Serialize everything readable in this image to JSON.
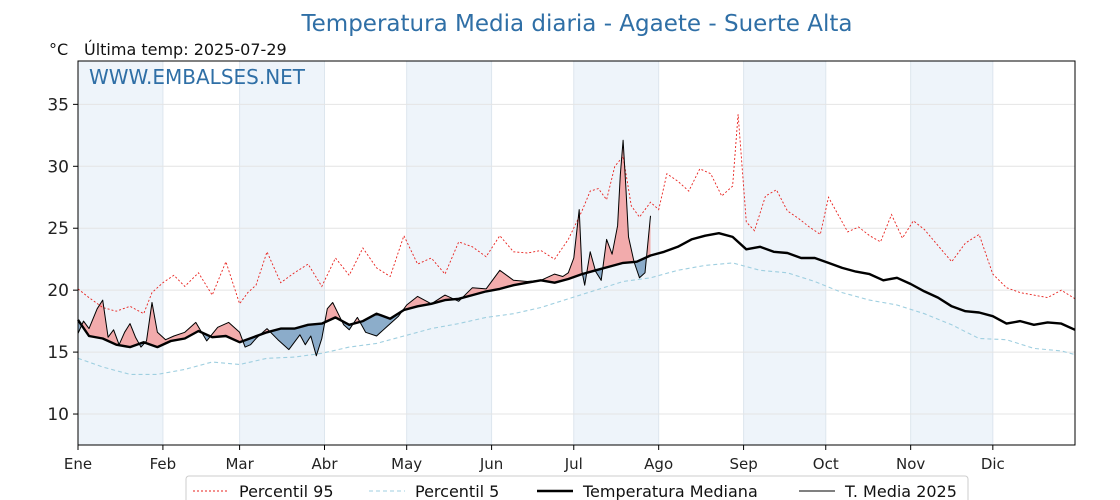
{
  "header": {
    "title": "Temperatura Media diaria - Agaete - Suerte Alta",
    "unit_label": "°C",
    "last_temp_label": "Última temp: 2025-07-29",
    "watermark": "WWW.EMBALSES.NET"
  },
  "colors": {
    "title": "#2f6fa6",
    "p95": "#e8211d",
    "p5": "#9fcfe0",
    "median": "#000000",
    "t2025": "#000000",
    "above_fill": "#f2a3a3",
    "below_fill": "#7fa4c4",
    "month_band": "#eef4fa"
  },
  "chart_data": {
    "type": "line",
    "title": "Temperatura Media diaria - Agaete - Suerte Alta",
    "ylabel": "°C",
    "xlabel": "",
    "x_unit": "day of year",
    "xlim": [
      1,
      365
    ],
    "ylim": [
      7.5,
      38.5
    ],
    "yticks": [
      10,
      15,
      20,
      25,
      30,
      35
    ],
    "grid": true,
    "legend_position": "bottom-center",
    "months": [
      {
        "label": "Ene",
        "day": 1
      },
      {
        "label": "Feb",
        "day": 32
      },
      {
        "label": "Mar",
        "day": 60
      },
      {
        "label": "Abr",
        "day": 91
      },
      {
        "label": "May",
        "day": 121
      },
      {
        "label": "Jun",
        "day": 152
      },
      {
        "label": "Jul",
        "day": 182
      },
      {
        "label": "Ago",
        "day": 213
      },
      {
        "label": "Sep",
        "day": 244
      },
      {
        "label": "Oct",
        "day": 274
      },
      {
        "label": "Nov",
        "day": 305
      },
      {
        "label": "Dic",
        "day": 335
      }
    ],
    "series": [
      {
        "name": "Percentil 95",
        "style": "dotted",
        "x": [
          1,
          5,
          10,
          15,
          20,
          25,
          28,
          32,
          36,
          40,
          45,
          50,
          55,
          60,
          63,
          66,
          70,
          75,
          80,
          85,
          90,
          95,
          100,
          105,
          110,
          115,
          120,
          125,
          130,
          135,
          140,
          145,
          150,
          155,
          160,
          165,
          170,
          175,
          180,
          185,
          188,
          191,
          194,
          197,
          200,
          203,
          206,
          210,
          213,
          216,
          220,
          224,
          228,
          232,
          236,
          240,
          242,
          245,
          248,
          252,
          256,
          260,
          264,
          268,
          272,
          275,
          278,
          282,
          286,
          290,
          294,
          298,
          302,
          306,
          310,
          315,
          320,
          325,
          330,
          335,
          340,
          345,
          350,
          355,
          360,
          365
        ],
        "values": [
          20.1,
          19.4,
          18.6,
          18.3,
          18.7,
          18.1,
          19.8,
          20.6,
          21.2,
          20.3,
          21.4,
          19.6,
          22.3,
          18.9,
          19.8,
          20.4,
          23.1,
          20.6,
          21.4,
          22.1,
          20.3,
          22.6,
          21.2,
          23.4,
          21.8,
          21.1,
          24.4,
          22.1,
          22.6,
          21.3,
          23.9,
          23.5,
          22.7,
          24.4,
          23.1,
          23.0,
          23.2,
          22.5,
          24.1,
          26.4,
          28.0,
          28.2,
          27.3,
          30.0,
          30.8,
          26.8,
          25.9,
          27.1,
          26.5,
          29.4,
          28.8,
          28.0,
          29.8,
          29.4,
          27.6,
          28.4,
          34.2,
          25.5,
          24.8,
          27.6,
          28.1,
          26.4,
          25.8,
          25.1,
          24.5,
          27.5,
          26.3,
          24.7,
          25.1,
          24.4,
          23.9,
          26.1,
          24.2,
          25.6,
          24.9,
          23.6,
          22.3,
          23.8,
          24.5,
          21.3,
          20.2,
          19.8,
          19.6,
          19.4,
          20.0,
          19.3
        ]
      },
      {
        "name": "Percentil 5",
        "style": "dashed",
        "x": [
          1,
          10,
          20,
          30,
          40,
          50,
          60,
          70,
          80,
          90,
          100,
          110,
          120,
          130,
          140,
          150,
          160,
          170,
          180,
          190,
          200,
          210,
          220,
          230,
          240,
          250,
          260,
          270,
          280,
          290,
          300,
          310,
          320,
          330,
          340,
          350,
          360,
          365
        ],
        "values": [
          14.5,
          13.8,
          13.2,
          13.2,
          13.6,
          14.2,
          14.0,
          14.5,
          14.6,
          14.9,
          15.4,
          15.7,
          16.3,
          16.9,
          17.3,
          17.8,
          18.1,
          18.6,
          19.3,
          20.0,
          20.7,
          21.0,
          21.6,
          22.0,
          22.2,
          21.6,
          21.4,
          20.7,
          19.8,
          19.2,
          18.8,
          18.1,
          17.2,
          16.1,
          16.0,
          15.3,
          15.1,
          14.8
        ]
      },
      {
        "name": "Temperatura Mediana",
        "style": "solid-thick",
        "x": [
          1,
          5,
          10,
          15,
          20,
          25,
          30,
          35,
          40,
          45,
          50,
          55,
          60,
          65,
          70,
          75,
          80,
          85,
          90,
          95,
          100,
          105,
          110,
          115,
          120,
          125,
          130,
          135,
          140,
          145,
          150,
          155,
          160,
          165,
          170,
          175,
          180,
          185,
          190,
          195,
          200,
          205,
          210,
          215,
          220,
          225,
          230,
          235,
          240,
          245,
          250,
          255,
          260,
          265,
          270,
          275,
          280,
          285,
          290,
          295,
          300,
          305,
          310,
          315,
          320,
          325,
          330,
          335,
          340,
          345,
          350,
          355,
          360,
          365
        ],
        "values": [
          17.6,
          16.3,
          16.1,
          15.6,
          15.4,
          15.8,
          15.4,
          15.9,
          16.1,
          16.7,
          16.2,
          16.3,
          15.8,
          16.2,
          16.6,
          16.9,
          16.9,
          17.2,
          17.3,
          17.8,
          17.2,
          17.5,
          18.1,
          17.7,
          18.4,
          18.7,
          18.9,
          19.2,
          19.3,
          19.6,
          19.9,
          20.1,
          20.4,
          20.6,
          20.8,
          20.6,
          20.9,
          21.3,
          21.6,
          21.9,
          22.2,
          22.3,
          22.8,
          23.1,
          23.5,
          24.1,
          24.4,
          24.6,
          24.3,
          23.3,
          23.5,
          23.1,
          23.0,
          22.6,
          22.6,
          22.2,
          21.8,
          21.5,
          21.3,
          20.8,
          21.0,
          20.5,
          19.9,
          19.4,
          18.7,
          18.3,
          18.2,
          17.9,
          17.3,
          17.5,
          17.2,
          17.4,
          17.3,
          16.8
        ]
      },
      {
        "name": "T. Media 2025",
        "style": "solid-thin",
        "x": [
          1,
          3,
          5,
          8,
          10,
          12,
          14,
          16,
          18,
          20,
          22,
          24,
          26,
          28,
          30,
          33,
          36,
          40,
          44,
          48,
          52,
          56,
          60,
          62,
          64,
          66,
          68,
          70,
          74,
          78,
          82,
          84,
          86,
          88,
          90,
          92,
          94,
          96,
          98,
          100,
          103,
          106,
          110,
          114,
          118,
          121,
          125,
          130,
          135,
          140,
          145,
          150,
          155,
          160,
          165,
          170,
          175,
          178,
          180,
          182,
          184,
          185,
          186,
          188,
          190,
          192,
          194,
          196,
          198,
          199,
          200,
          201,
          202,
          204,
          206,
          208,
          210
        ],
        "values": [
          16.5,
          17.5,
          16.9,
          18.5,
          19.2,
          16.2,
          16.8,
          15.6,
          16.6,
          17.3,
          16.2,
          15.4,
          15.9,
          19.0,
          16.6,
          16.0,
          16.3,
          16.6,
          17.4,
          15.9,
          17.0,
          17.4,
          16.6,
          15.4,
          15.6,
          16.1,
          16.5,
          16.9,
          16.0,
          15.2,
          16.4,
          15.6,
          16.3,
          14.7,
          16.1,
          18.5,
          19.0,
          18.1,
          17.2,
          16.8,
          17.8,
          16.6,
          16.3,
          17.1,
          17.9,
          18.8,
          19.5,
          18.9,
          19.6,
          19.1,
          20.2,
          20.1,
          21.6,
          20.8,
          20.7,
          20.8,
          21.3,
          21.1,
          21.4,
          22.6,
          26.5,
          21.5,
          20.4,
          23.1,
          21.5,
          20.8,
          24.1,
          22.9,
          25.2,
          29.3,
          32.1,
          28.4,
          24.3,
          22.3,
          21.0,
          21.4,
          26.0
        ]
      }
    ]
  }
}
